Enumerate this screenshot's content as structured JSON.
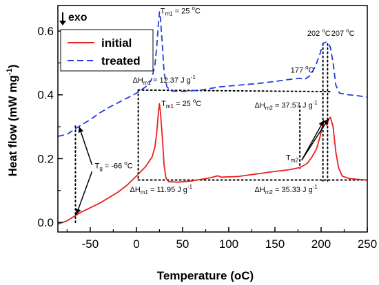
{
  "chart_data": {
    "type": "line",
    "xlabel": "Temperature (",
    "xlabel_unit": "oC",
    "xlabel_close": ")",
    "ylabel": "Heat flow (mW mg",
    "ylabel_sup": "-1",
    "ylabel_close": ")",
    "xlim": [
      -85,
      250
    ],
    "ylim": [
      -0.03,
      0.68
    ],
    "x_ticks": [
      -50,
      0,
      50,
      100,
      150,
      200,
      250
    ],
    "x_tick_labels": [
      "-50",
      "0",
      "50",
      "100",
      "150",
      "200",
      "250"
    ],
    "y_ticks": [
      0.0,
      0.2,
      0.4,
      0.6
    ],
    "y_tick_labels": [
      "0.0",
      "0.2",
      "0.4",
      "0.6"
    ],
    "exo_label": "exo",
    "legend": {
      "position": "top-left"
    },
    "series": [
      {
        "name": "initial",
        "color": "#e8201f",
        "dash": "solid",
        "points": [
          [
            -85,
            -0.005
          ],
          [
            -75,
            0.005
          ],
          [
            -68,
            0.018
          ],
          [
            -60,
            0.032
          ],
          [
            -50,
            0.046
          ],
          [
            -40,
            0.06
          ],
          [
            -30,
            0.077
          ],
          [
            -20,
            0.095
          ],
          [
            -10,
            0.117
          ],
          [
            0,
            0.145
          ],
          [
            10,
            0.175
          ],
          [
            17,
            0.205
          ],
          [
            20,
            0.235
          ],
          [
            22,
            0.28
          ],
          [
            24,
            0.35
          ],
          [
            25,
            0.372
          ],
          [
            26,
            0.345
          ],
          [
            28,
            0.27
          ],
          [
            30,
            0.18
          ],
          [
            32,
            0.14
          ],
          [
            35,
            0.128
          ],
          [
            45,
            0.126
          ],
          [
            60,
            0.13
          ],
          [
            80,
            0.14
          ],
          [
            88,
            0.146
          ],
          [
            92,
            0.142
          ],
          [
            110,
            0.144
          ],
          [
            130,
            0.152
          ],
          [
            150,
            0.16
          ],
          [
            165,
            0.165
          ],
          [
            177,
            0.172
          ],
          [
            185,
            0.185
          ],
          [
            190,
            0.205
          ],
          [
            195,
            0.23
          ],
          [
            199,
            0.27
          ],
          [
            202,
            0.312
          ],
          [
            204,
            0.318
          ],
          [
            206,
            0.305
          ],
          [
            208,
            0.322
          ],
          [
            210,
            0.33
          ],
          [
            213,
            0.3
          ],
          [
            216,
            0.22
          ],
          [
            219,
            0.17
          ],
          [
            223,
            0.145
          ],
          [
            230,
            0.138
          ],
          [
            240,
            0.135
          ],
          [
            250,
            0.133
          ]
        ]
      },
      {
        "name": "treated",
        "color": "#1f3be0",
        "dash": "dashed",
        "points": [
          [
            -85,
            0.27
          ],
          [
            -75,
            0.276
          ],
          [
            -68,
            0.29
          ],
          [
            -60,
            0.305
          ],
          [
            -50,
            0.322
          ],
          [
            -40,
            0.343
          ],
          [
            -30,
            0.36
          ],
          [
            -20,
            0.375
          ],
          [
            -10,
            0.39
          ],
          [
            0,
            0.405
          ],
          [
            10,
            0.425
          ],
          [
            16,
            0.445
          ],
          [
            20,
            0.49
          ],
          [
            22,
            0.55
          ],
          [
            24,
            0.63
          ],
          [
            25,
            0.66
          ],
          [
            26,
            0.64
          ],
          [
            28,
            0.56
          ],
          [
            30,
            0.47
          ],
          [
            33,
            0.425
          ],
          [
            38,
            0.412
          ],
          [
            50,
            0.41
          ],
          [
            70,
            0.415
          ],
          [
            90,
            0.425
          ],
          [
            110,
            0.43
          ],
          [
            130,
            0.435
          ],
          [
            150,
            0.442
          ],
          [
            165,
            0.448
          ],
          [
            177,
            0.452
          ],
          [
            182,
            0.448
          ],
          [
            188,
            0.46
          ],
          [
            194,
            0.49
          ],
          [
            199,
            0.53
          ],
          [
            202,
            0.562
          ],
          [
            205,
            0.565
          ],
          [
            207,
            0.562
          ],
          [
            210,
            0.55
          ],
          [
            213,
            0.5
          ],
          [
            216,
            0.43
          ],
          [
            220,
            0.405
          ],
          [
            230,
            0.4
          ],
          [
            240,
            0.397
          ],
          [
            250,
            0.393
          ]
        ]
      }
    ],
    "annotations": {
      "tm1_top": {
        "main": "T",
        "sub": "m1",
        "rest": " = 25 ",
        "sup": "o",
        "unit": "C",
        "x": 26,
        "y": 0.655
      },
      "tm1_mid": {
        "main": "T",
        "sub": "m1",
        "rest": " = 25 ",
        "sup": "o",
        "unit": "C",
        "x": 27,
        "y": 0.365
      },
      "dhm1_top": {
        "main": "ΔH",
        "sub": "m1",
        "rest": " = 12.37 J g",
        "sup": "-1",
        "x": -4,
        "y": 0.438
      },
      "dhm2_top": {
        "main": "ΔH",
        "sub": "m2",
        "rest": " = 37.57 J g",
        "sup": "-1",
        "x": 128,
        "y": 0.36
      },
      "dhm1_bot": {
        "main": "ΔH",
        "sub": "m1",
        "rest": " = 11.95 J g",
        "sup": "-1",
        "x": -7,
        "y": 0.095
      },
      "dhm2_bot": {
        "main": "ΔH",
        "sub": "m2",
        "rest": " = 35.33 J g",
        "sup": "-1",
        "x": 128,
        "y": 0.095
      },
      "t177": {
        "main": "177 ",
        "sup": "o",
        "unit": "C",
        "x": 167,
        "y": 0.47
      },
      "t202": {
        "main": "202 ",
        "sup": "o",
        "unit": "C",
        "x": 185,
        "y": 0.585
      },
      "t207": {
        "main": "207 ",
        "sup": "o",
        "unit": "C",
        "x": 211,
        "y": 0.585
      },
      "tm2": {
        "main": "T",
        "sub": "m2",
        "x": 162,
        "y": 0.195
      },
      "tg": {
        "main": "T",
        "sub": "g",
        "rest": " = -66 ",
        "sup": "o",
        "unit": "C",
        "x": -45,
        "y": 0.17
      }
    }
  }
}
